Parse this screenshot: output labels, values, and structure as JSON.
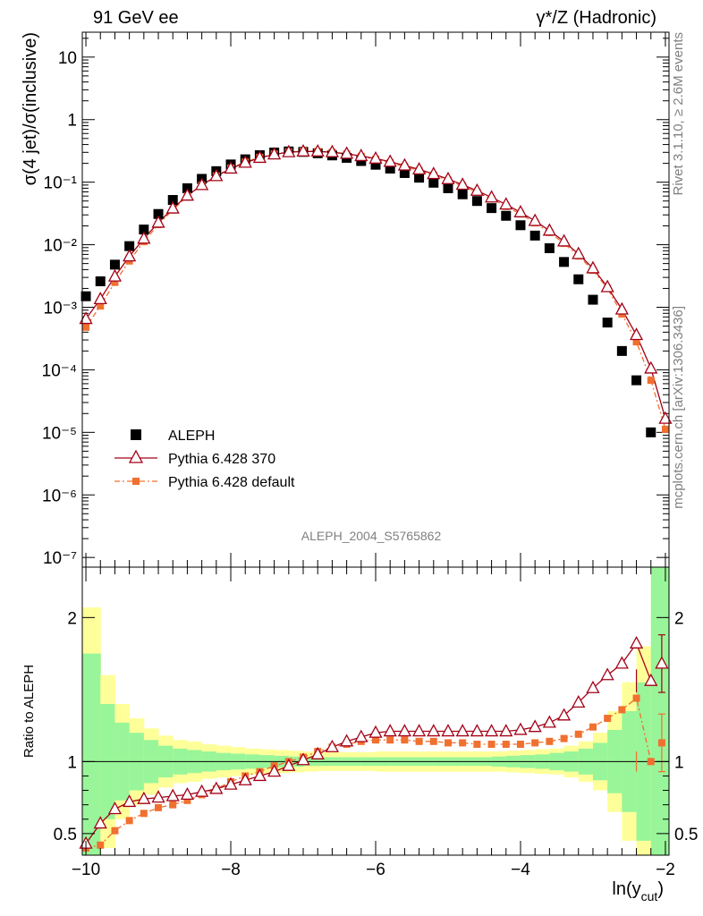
{
  "header": {
    "left_title": "91 GeV ee",
    "right_title": "γ*/Z (Hadronic)"
  },
  "side_labels": {
    "rivet": "Rivet 3.1.10, ≥ 2.6M events",
    "mcplots": "mcplots.cern.ch [arXiv:1306.3436]"
  },
  "analysis_label": "ALEPH_2004_S5765862",
  "chart_data": [
    {
      "type": "scatter",
      "panel": "main",
      "ylabel": "σ(4 jet)/σ(inclusive)",
      "yscale": "log",
      "ylim": [
        7e-08,
        25
      ],
      "xlim": [
        -10.05,
        -1.95
      ],
      "y_ticks": [
        {
          "value": 10,
          "label": "10"
        },
        {
          "value": 1,
          "label": "1"
        },
        {
          "value": 0.1,
          "label": "10⁻¹"
        },
        {
          "value": 0.01,
          "label": "10⁻²"
        },
        {
          "value": 0.001,
          "label": "10⁻³"
        },
        {
          "value": 0.0001,
          "label": "10⁻⁴"
        },
        {
          "value": 1e-05,
          "label": "10⁻⁵"
        },
        {
          "value": 1e-06,
          "label": "10⁻⁶"
        },
        {
          "value": 1e-07,
          "label": "10⁻⁷"
        }
      ],
      "x": [
        -10.0,
        -9.8,
        -9.6,
        -9.4,
        -9.2,
        -9.0,
        -8.8,
        -8.6,
        -8.4,
        -8.2,
        -8.0,
        -7.8,
        -7.6,
        -7.4,
        -7.2,
        -7.0,
        -6.8,
        -6.6,
        -6.4,
        -6.2,
        -6.0,
        -5.8,
        -5.6,
        -5.4,
        -5.2,
        -5.0,
        -4.8,
        -4.6,
        -4.4,
        -4.2,
        -4.0,
        -3.8,
        -3.6,
        -3.4,
        -3.2,
        -3.0,
        -2.8,
        -2.6,
        -2.4,
        -2.2
      ],
      "series": [
        {
          "name": "ALEPH",
          "color": "#000000",
          "marker": "square",
          "values": [
            0.0015,
            0.0026,
            0.0048,
            0.0095,
            0.0175,
            0.031,
            0.052,
            0.08,
            0.113,
            0.15,
            0.192,
            0.232,
            0.27,
            0.298,
            0.31,
            0.305,
            0.29,
            0.268,
            0.245,
            0.218,
            0.19,
            0.165,
            0.14,
            0.118,
            0.098,
            0.08,
            0.064,
            0.05,
            0.0385,
            0.029,
            0.0205,
            0.014,
            0.0088,
            0.0053,
            0.0028,
            0.00132,
            0.00057,
            0.0002,
            6.8e-05,
            1e-05
          ]
        },
        {
          "name": "Pythia 6.428 370",
          "color": "#a30017",
          "marker": "triangle",
          "values": [
            0.00065,
            0.00135,
            0.0031,
            0.0065,
            0.0125,
            0.0225,
            0.038,
            0.061,
            0.09,
            0.125,
            0.165,
            0.205,
            0.245,
            0.278,
            0.302,
            0.31,
            0.31,
            0.302,
            0.285,
            0.262,
            0.238,
            0.212,
            0.185,
            0.16,
            0.135,
            0.112,
            0.091,
            0.073,
            0.057,
            0.044,
            0.033,
            0.024,
            0.0168,
            0.0113,
            0.0071,
            0.0042,
            0.0021,
            0.00092,
            0.00036,
            0.000105,
            1.65e-05
          ]
        },
        {
          "name": "Pythia 6.428 default",
          "color": "#f07030",
          "marker": "small-square",
          "values": [
            0.00048,
            0.00105,
            0.0025,
            0.0055,
            0.0112,
            0.021,
            0.036,
            0.06,
            0.09,
            0.126,
            0.168,
            0.21,
            0.25,
            0.283,
            0.305,
            0.312,
            0.31,
            0.3,
            0.282,
            0.258,
            0.232,
            0.205,
            0.178,
            0.153,
            0.129,
            0.107,
            0.087,
            0.069,
            0.054,
            0.041,
            0.031,
            0.0224,
            0.0157,
            0.0105,
            0.0066,
            0.0039,
            0.002,
            0.00078,
            0.00028,
            6.8e-05,
            1.12e-05
          ]
        }
      ],
      "x_mc": [
        -10.0,
        -9.8,
        -9.6,
        -9.4,
        -9.2,
        -9.0,
        -8.8,
        -8.6,
        -8.4,
        -8.2,
        -8.0,
        -7.8,
        -7.6,
        -7.4,
        -7.2,
        -7.0,
        -6.8,
        -6.6,
        -6.4,
        -6.2,
        -6.0,
        -5.8,
        -5.6,
        -5.4,
        -5.2,
        -5.0,
        -4.8,
        -4.6,
        -4.4,
        -4.2,
        -4.0,
        -3.8,
        -3.6,
        -3.4,
        -3.2,
        -3.0,
        -2.8,
        -2.6,
        -2.4,
        -2.2,
        -2.0
      ],
      "legend_placement": "lower-left"
    },
    {
      "type": "line",
      "panel": "ratio",
      "ylabel": "Ratio to ALEPH",
      "xlabel": "ln(y",
      "xlabel_sub": "cut",
      "xlabel_end": ")",
      "ylim": [
        0.35,
        2.35
      ],
      "xlim": [
        -10.05,
        -1.95
      ],
      "y_ticks": [
        {
          "value": 0.5,
          "label": "0.5"
        },
        {
          "value": 1,
          "label": "1"
        },
        {
          "value": 2,
          "label": "2"
        }
      ],
      "x_ticks": [
        {
          "value": -10,
          "label": "−10"
        },
        {
          "value": -8,
          "label": "−8"
        },
        {
          "value": -6,
          "label": "−6"
        },
        {
          "value": -4,
          "label": "−4"
        },
        {
          "value": -2,
          "label": "−2"
        }
      ],
      "band_edges": [
        -10.05,
        -9.8,
        -9.6,
        -9.4,
        -9.2,
        -9.0,
        -8.8,
        -8.6,
        -8.4,
        -8.2,
        -8.0,
        -7.8,
        -7.6,
        -7.4,
        -7.2,
        -7.0,
        -6.8,
        -6.6,
        -6.4,
        -6.2,
        -6.0,
        -5.8,
        -5.6,
        -5.4,
        -5.2,
        -5.0,
        -4.8,
        -4.6,
        -4.4,
        -4.2,
        -4.0,
        -3.8,
        -3.6,
        -3.4,
        -3.2,
        -3.0,
        -2.8,
        -2.6,
        -2.4,
        -2.2,
        -1.95
      ],
      "band_stat_syst": [
        1.07,
        0.6,
        0.4,
        0.3,
        0.23,
        0.18,
        0.15,
        0.14,
        0.12,
        0.11,
        0.1,
        0.09,
        0.085,
        0.08,
        0.075,
        0.07,
        0.065,
        0.065,
        0.065,
        0.065,
        0.07,
        0.07,
        0.07,
        0.07,
        0.07,
        0.07,
        0.07,
        0.07,
        0.07,
        0.075,
        0.08,
        0.085,
        0.09,
        0.11,
        0.14,
        0.2,
        0.35,
        0.55,
        0.8,
        1.4
      ],
      "band_stat": [
        0.75,
        0.4,
        0.27,
        0.2,
        0.15,
        0.11,
        0.09,
        0.08,
        0.07,
        0.06,
        0.055,
        0.05,
        0.045,
        0.04,
        0.035,
        0.03,
        0.03,
        0.03,
        0.03,
        0.03,
        0.03,
        0.03,
        0.03,
        0.03,
        0.03,
        0.03,
        0.03,
        0.03,
        0.035,
        0.04,
        0.045,
        0.05,
        0.06,
        0.07,
        0.09,
        0.13,
        0.22,
        0.35,
        0.55,
        1.4
      ],
      "x": [
        -10.0,
        -9.8,
        -9.6,
        -9.4,
        -9.2,
        -9.0,
        -8.8,
        -8.6,
        -8.4,
        -8.2,
        -8.0,
        -7.8,
        -7.6,
        -7.4,
        -7.2,
        -7.0,
        -6.8,
        -6.6,
        -6.4,
        -6.2,
        -6.0,
        -5.8,
        -5.6,
        -5.4,
        -5.2,
        -5.0,
        -4.8,
        -4.6,
        -4.4,
        -4.2,
        -4.0,
        -3.8,
        -3.6,
        -3.4,
        -3.2,
        -3.0,
        -2.8,
        -2.6,
        -2.4,
        -2.2
      ],
      "series": [
        {
          "name": "Pythia 6.428 370",
          "color": "#a30017",
          "values": [
            0.43,
            0.57,
            0.67,
            0.72,
            0.74,
            0.75,
            0.76,
            0.77,
            0.79,
            0.81,
            0.84,
            0.87,
            0.9,
            0.93,
            0.97,
            1.01,
            1.05,
            1.1,
            1.14,
            1.17,
            1.2,
            1.21,
            1.21,
            1.21,
            1.21,
            1.21,
            1.21,
            1.21,
            1.21,
            1.21,
            1.22,
            1.24,
            1.27,
            1.32,
            1.41,
            1.51,
            1.6,
            1.68,
            1.82,
            1.56
          ]
        },
        {
          "name": "Pythia 6.428 default",
          "color": "#f07030",
          "values": [
            0.4,
            0.42,
            0.52,
            0.59,
            0.64,
            0.68,
            0.7,
            0.73,
            0.77,
            0.81,
            0.86,
            0.9,
            0.93,
            0.97,
            1.0,
            1.03,
            1.07,
            1.1,
            1.12,
            1.14,
            1.15,
            1.15,
            1.15,
            1.14,
            1.14,
            1.13,
            1.13,
            1.12,
            1.12,
            1.12,
            1.12,
            1.13,
            1.14,
            1.16,
            1.19,
            1.24,
            1.3,
            1.36,
            1.44,
            1.0
          ]
        }
      ],
      "last_points": [
        {
          "series": "Pythia 6.428 370",
          "x": -2.05,
          "y": 1.68,
          "err": 0.2
        },
        {
          "series": "Pythia 6.428 default",
          "x": -2.05,
          "y": 1.13,
          "err": 0.2
        }
      ]
    }
  ]
}
